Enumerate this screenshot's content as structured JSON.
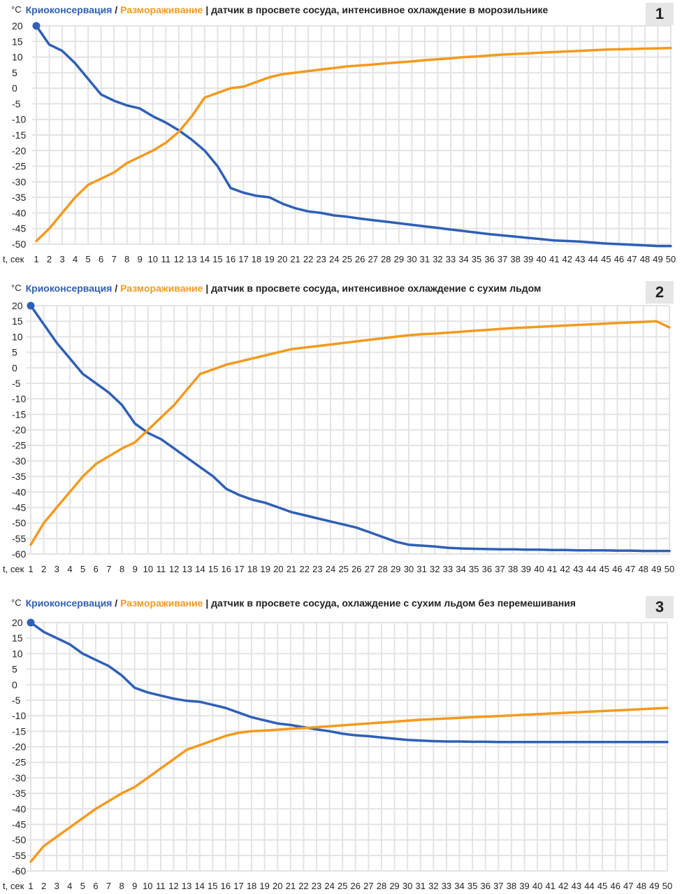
{
  "legend": {
    "degree": "°C",
    "series1": "Криоконсервация",
    "slash": "/",
    "series2": "Размораживание",
    "sep": "|"
  },
  "x_axis_label": "t, сек",
  "colors": {
    "cryo": "#2F60B5",
    "thaw": "#F39A1E",
    "grid": "#e3e3e3"
  },
  "chart_data": [
    {
      "type": "line",
      "panel_number": "1",
      "subtitle": "датчик в просвете сосуда, интенсивное охлаждение в морозильнике",
      "x": [
        1,
        2,
        3,
        4,
        5,
        6,
        7,
        8,
        9,
        10,
        11,
        12,
        13,
        14,
        15,
        16,
        17,
        18,
        19,
        20,
        21,
        22,
        23,
        24,
        25,
        26,
        27,
        28,
        29,
        30,
        31,
        32,
        33,
        34,
        35,
        36,
        37,
        38,
        39,
        40,
        41,
        42,
        43,
        44,
        45,
        46,
        47,
        48,
        49,
        50
      ],
      "ylim": [
        -50,
        20
      ],
      "yticks": [
        20,
        15,
        10,
        5,
        0,
        -5,
        -10,
        -15,
        -20,
        -25,
        -30,
        -35,
        -40,
        -45,
        -50
      ],
      "series": [
        {
          "name": "Криоконсервация",
          "values": [
            20,
            14,
            12,
            8,
            3,
            -2,
            -4,
            -5.5,
            -6.5,
            -9,
            -11,
            -13.5,
            -16.5,
            -20,
            -25,
            -32,
            -33.5,
            -34.5,
            -35,
            -37,
            -38.5,
            -39.5,
            -40,
            -40.8,
            -41.2,
            -41.8,
            -42.3,
            -42.8,
            -43.3,
            -43.8,
            -44.3,
            -44.8,
            -45.3,
            -45.8,
            -46.3,
            -46.8,
            -47.2,
            -47.6,
            -48,
            -48.4,
            -48.8,
            -49,
            -49.2,
            -49.5,
            -49.8,
            -50,
            -50.2,
            -50.4,
            -50.6,
            -50.6
          ]
        },
        {
          "name": "Размораживание",
          "values": [
            -49,
            -45,
            -40,
            -35,
            -31,
            -29,
            -27,
            -24,
            -22,
            -20,
            -17.5,
            -14,
            -9,
            -3,
            -1.5,
            0,
            0.5,
            2,
            3.5,
            4.5,
            5,
            5.5,
            6,
            6.5,
            7,
            7.3,
            7.6,
            8,
            8.3,
            8.6,
            9,
            9.3,
            9.6,
            10,
            10.2,
            10.5,
            10.8,
            11,
            11.2,
            11.4,
            11.6,
            11.8,
            12,
            12.2,
            12.4,
            12.5,
            12.6,
            12.7,
            12.8,
            12.9
          ]
        }
      ]
    },
    {
      "type": "line",
      "panel_number": "2",
      "subtitle": "датчик в просвете сосуда, интенсивное охлаждение с сухим льдом",
      "x": [
        1,
        2,
        3,
        4,
        5,
        6,
        7,
        8,
        9,
        10,
        11,
        12,
        13,
        14,
        15,
        16,
        17,
        18,
        19,
        20,
        21,
        22,
        23,
        24,
        25,
        26,
        27,
        28,
        29,
        30,
        31,
        32,
        33,
        34,
        35,
        36,
        37,
        38,
        39,
        40,
        41,
        42,
        43,
        44,
        45,
        46,
        47,
        48,
        49,
        50
      ],
      "ylim": [
        -60,
        20
      ],
      "yticks": [
        20,
        15,
        10,
        5,
        0,
        -5,
        -10,
        -15,
        -20,
        -25,
        -30,
        -35,
        -40,
        -45,
        -50,
        -55,
        -60
      ],
      "series": [
        {
          "name": "Криоконсервация",
          "values": [
            20,
            14,
            8,
            3,
            -2,
            -5,
            -8,
            -12,
            -18,
            -21,
            -23,
            -26,
            -29,
            -32,
            -35,
            -39,
            -41,
            -42.5,
            -43.5,
            -45,
            -46.5,
            -47.5,
            -48.5,
            -49.5,
            -50.5,
            -51.5,
            -53,
            -54.5,
            -56,
            -57,
            -57.3,
            -57.6,
            -58,
            -58.2,
            -58.3,
            -58.4,
            -58.5,
            -58.5,
            -58.6,
            -58.6,
            -58.7,
            -58.7,
            -58.8,
            -58.8,
            -58.8,
            -58.9,
            -58.9,
            -59,
            -59,
            -59
          ]
        },
        {
          "name": "Размораживание",
          "values": [
            -57,
            -50,
            -45,
            -40,
            -35,
            -31,
            -28.5,
            -26,
            -24,
            -20,
            -16,
            -12,
            -7,
            -2,
            -0.5,
            1,
            2,
            3,
            4,
            5,
            6,
            6.5,
            7,
            7.5,
            8,
            8.5,
            9,
            9.5,
            10,
            10.5,
            10.8,
            11,
            11.3,
            11.6,
            11.9,
            12.2,
            12.5,
            12.8,
            13,
            13.2,
            13.4,
            13.6,
            13.8,
            14,
            14.2,
            14.4,
            14.6,
            14.8,
            15,
            13
          ]
        }
      ]
    },
    {
      "type": "line",
      "panel_number": "3",
      "subtitle": "датчик в просвете сосуда, охлаждение с сухим льдом без перемешивания",
      "x": [
        1,
        2,
        3,
        4,
        5,
        6,
        7,
        8,
        9,
        10,
        11,
        12,
        13,
        14,
        15,
        16,
        17,
        18,
        19,
        20,
        21,
        22,
        23,
        24,
        25,
        26,
        27,
        28,
        29,
        30,
        31,
        32,
        33,
        34,
        35,
        36,
        37,
        38,
        39,
        40,
        41,
        42,
        43,
        44,
        45,
        46,
        47,
        48,
        49,
        50
      ],
      "ylim": [
        -60,
        20
      ],
      "yticks": [
        20,
        15,
        10,
        5,
        0,
        -5,
        -10,
        -15,
        -20,
        -25,
        -30,
        -35,
        -40,
        -45,
        -50,
        -55,
        -60
      ],
      "series": [
        {
          "name": "Криоконсервация",
          "values": [
            20,
            17,
            15,
            13,
            10,
            8,
            6,
            3,
            -1,
            -2.5,
            -3.5,
            -4.5,
            -5.2,
            -5.5,
            -6.5,
            -7.5,
            -9,
            -10.5,
            -11.5,
            -12.5,
            -13,
            -13.7,
            -14.4,
            -15,
            -15.8,
            -16.3,
            -16.6,
            -17,
            -17.4,
            -17.8,
            -18,
            -18.2,
            -18.3,
            -18.3,
            -18.4,
            -18.4,
            -18.5,
            -18.5,
            -18.5,
            -18.5,
            -18.5,
            -18.5,
            -18.5,
            -18.5,
            -18.5,
            -18.5,
            -18.5,
            -18.5,
            -18.5,
            -18.5
          ]
        },
        {
          "name": "Размораживание",
          "values": [
            -57,
            -52,
            -49,
            -46,
            -43,
            -40,
            -37.5,
            -35,
            -33,
            -30,
            -27,
            -24,
            -21,
            -19.5,
            -18,
            -16.5,
            -15.5,
            -15,
            -14.8,
            -14.5,
            -14.2,
            -14,
            -13.7,
            -13.4,
            -13.1,
            -12.8,
            -12.5,
            -12.2,
            -11.9,
            -11.6,
            -11.3,
            -11.1,
            -10.9,
            -10.7,
            -10.5,
            -10.3,
            -10.1,
            -9.9,
            -9.7,
            -9.5,
            -9.3,
            -9.1,
            -8.9,
            -8.7,
            -8.5,
            -8.3,
            -8.1,
            -7.9,
            -7.7,
            -7.5
          ]
        }
      ]
    }
  ]
}
